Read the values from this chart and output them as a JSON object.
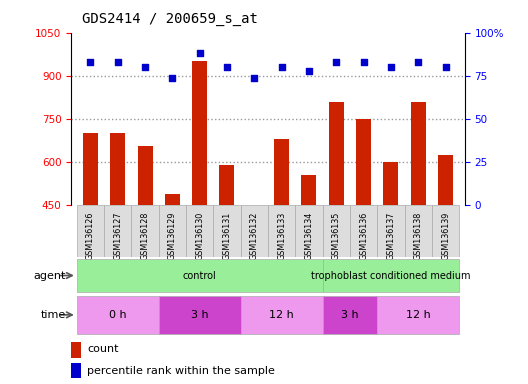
{
  "title": "GDS2414 / 200659_s_at",
  "samples": [
    "GSM136126",
    "GSM136127",
    "GSM136128",
    "GSM136129",
    "GSM136130",
    "GSM136131",
    "GSM136132",
    "GSM136133",
    "GSM136134",
    "GSM136135",
    "GSM136136",
    "GSM136137",
    "GSM136138",
    "GSM136139"
  ],
  "counts": [
    700,
    700,
    655,
    490,
    950,
    590,
    450,
    680,
    555,
    810,
    750,
    600,
    810,
    625
  ],
  "percentiles": [
    83,
    83,
    80,
    74,
    88,
    80,
    74,
    80,
    78,
    83,
    83,
    80,
    83,
    80
  ],
  "ylim_left": [
    450,
    1050
  ],
  "ylim_right": [
    0,
    100
  ],
  "yticks_left": [
    450,
    600,
    750,
    900,
    1050
  ],
  "yticks_right": [
    0,
    25,
    50,
    75,
    100
  ],
  "bar_color": "#cc2200",
  "dot_color": "#0000cc",
  "grid_dotted_lines": [
    900,
    750,
    600
  ],
  "agent_groups": [
    {
      "label": "control",
      "xstart": -0.5,
      "xend": 8.5,
      "color": "#99ee99"
    },
    {
      "label": "trophoblast conditioned medium",
      "xstart": 8.5,
      "xend": 13.5,
      "color": "#99ee99"
    }
  ],
  "time_groups": [
    {
      "label": "0 h",
      "xstart": -0.5,
      "xend": 2.5,
      "color": "#ee99ee"
    },
    {
      "label": "3 h",
      "xstart": 2.5,
      "xend": 5.5,
      "color": "#cc44cc"
    },
    {
      "label": "12 h",
      "xstart": 5.5,
      "xend": 8.5,
      "color": "#ee99ee"
    },
    {
      "label": "3 h",
      "xstart": 8.5,
      "xend": 10.5,
      "color": "#cc44cc"
    },
    {
      "label": "12 h",
      "xstart": 10.5,
      "xend": 13.5,
      "color": "#ee99ee"
    }
  ],
  "bg_color": "#ffffff",
  "sample_bg_color": "#dddddd",
  "legend_count_color": "#cc2200",
  "legend_pct_color": "#0000cc"
}
